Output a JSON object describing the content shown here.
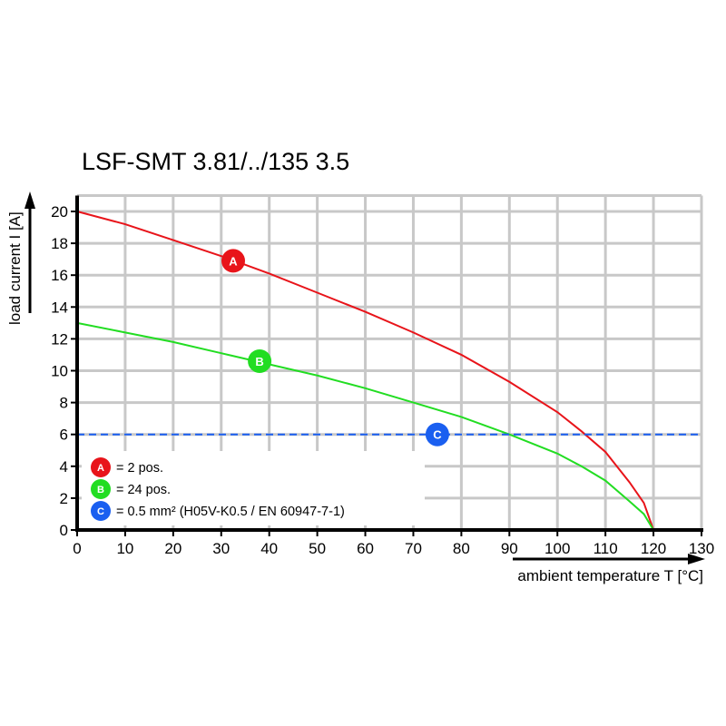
{
  "chart_data": {
    "type": "line",
    "title": "LSF-SMT 3.81/../135 3.5",
    "xlabel": "ambient temperature T [°C]",
    "ylabel": "load current I [A]",
    "xlim": [
      0,
      130
    ],
    "ylim": [
      0,
      21
    ],
    "xticks": [
      0,
      10,
      20,
      30,
      40,
      50,
      60,
      70,
      80,
      90,
      100,
      110,
      120,
      130
    ],
    "yticks": [
      0,
      2,
      4,
      6,
      8,
      10,
      12,
      14,
      16,
      18,
      20
    ],
    "grid": true,
    "legend_placement": "bottom-left",
    "series": [
      {
        "name": "A",
        "legend": "= 2 pos.",
        "color": "#e8141a",
        "marker_at": [
          32.5,
          16.9
        ],
        "x": [
          0,
          10,
          20,
          30,
          40,
          50,
          60,
          70,
          80,
          90,
          100,
          105,
          110,
          115,
          118,
          120
        ],
        "y": [
          20,
          19.2,
          18.2,
          17.2,
          16.1,
          14.9,
          13.7,
          12.4,
          11.0,
          9.3,
          7.4,
          6.2,
          4.9,
          3.0,
          1.7,
          0
        ]
      },
      {
        "name": "B",
        "legend": "= 24 pos.",
        "color": "#22dd22",
        "marker_at": [
          38,
          10.6
        ],
        "x": [
          0,
          10,
          20,
          30,
          40,
          50,
          60,
          70,
          80,
          90,
          100,
          105,
          110,
          115,
          118,
          120
        ],
        "y": [
          13,
          12.4,
          11.8,
          11.1,
          10.4,
          9.7,
          8.9,
          8.0,
          7.1,
          6.0,
          4.8,
          4.0,
          3.1,
          1.8,
          1.0,
          0
        ]
      },
      {
        "name": "C",
        "legend": "= 0.5 mm² (H05V-K0.5 / EN 60947-7-1)",
        "color": "#1a5ff0",
        "dashed": true,
        "marker_at": [
          75,
          6
        ],
        "x": [
          0,
          130
        ],
        "y": [
          6,
          6
        ]
      }
    ]
  }
}
